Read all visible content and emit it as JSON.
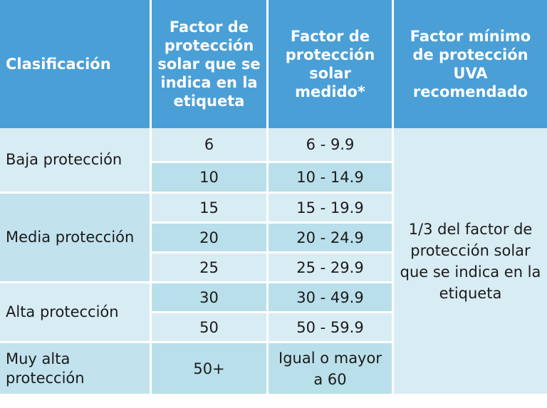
{
  "headers": {
    "col1": "Clasificación",
    "col2": "Factor de protección solar que se indica en la etiqueta",
    "col3": "Factor de protección solar medido*",
    "col4": "Factor mínimo de protección UVA recomendado"
  },
  "groups": [
    {
      "label": "Baja protección",
      "rows": [
        {
          "indicated": "6",
          "measured": "6 - 9.9"
        },
        {
          "indicated": "10",
          "measured": "10 - 14.9"
        }
      ]
    },
    {
      "label": "Media protección",
      "rows": [
        {
          "indicated": "15",
          "measured": "15 - 19.9"
        },
        {
          "indicated": "20",
          "measured": "20 - 24.9"
        },
        {
          "indicated": "25",
          "measured": "25 - 29.9"
        }
      ]
    },
    {
      "label": "Alta protección",
      "rows": [
        {
          "indicated": "30",
          "measured": "30 - 49.9"
        },
        {
          "indicated": "50",
          "measured": "50 - 59.9"
        }
      ]
    },
    {
      "label": "Muy alta protección",
      "rows": [
        {
          "indicated": "50+",
          "measured": "Igual o mayor a 60"
        }
      ]
    }
  ],
  "uva_recommendation": "1/3 del factor de protección solar que se indica en la etiqueta"
}
